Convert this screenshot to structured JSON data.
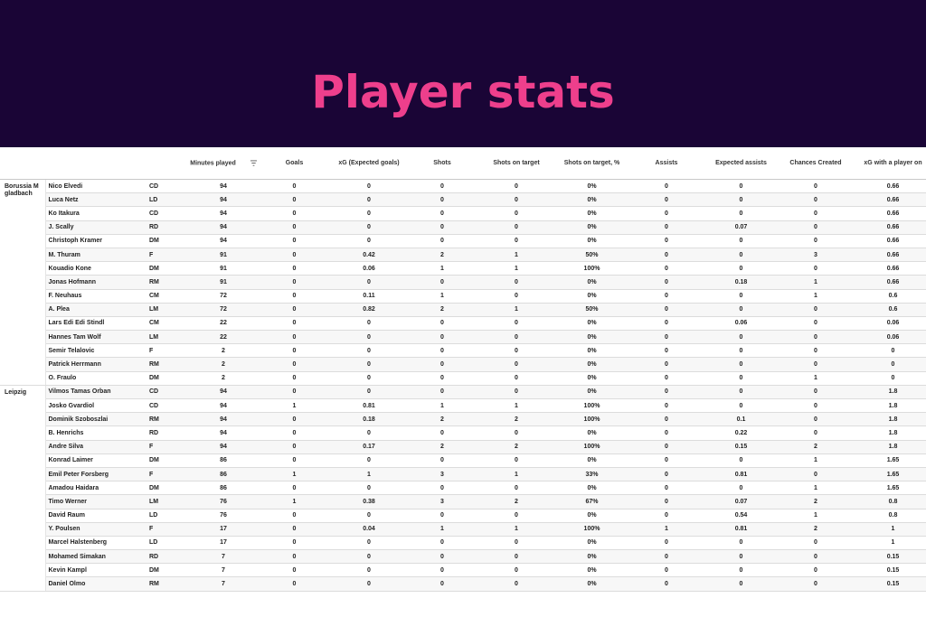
{
  "banner": {
    "title": "Player stats"
  },
  "columns": {
    "minutes": "Minutes played",
    "goals": "Goals",
    "xg": "xG (Expected goals)",
    "shots": "Shots",
    "sot": "Shots on target",
    "sot_pct": "Shots on target, %",
    "assists": "Assists",
    "xa": "Expected assists",
    "chances": "Chances Created",
    "xg_on": "xG with a player on"
  },
  "sort_icon": "sort-filter-icon",
  "teams": [
    {
      "name": "Borussia M gladbach",
      "players": [
        [
          "Nico Elvedi",
          "CD",
          "94",
          "0",
          "0",
          "0",
          "0",
          "0%",
          "0",
          "0",
          "0",
          "0.66"
        ],
        [
          "Luca Netz",
          "LD",
          "94",
          "0",
          "0",
          "0",
          "0",
          "0%",
          "0",
          "0",
          "0",
          "0.66"
        ],
        [
          "Ko Itakura",
          "CD",
          "94",
          "0",
          "0",
          "0",
          "0",
          "0%",
          "0",
          "0",
          "0",
          "0.66"
        ],
        [
          "J. Scally",
          "RD",
          "94",
          "0",
          "0",
          "0",
          "0",
          "0%",
          "0",
          "0.07",
          "0",
          "0.66"
        ],
        [
          "Christoph Kramer",
          "DM",
          "94",
          "0",
          "0",
          "0",
          "0",
          "0%",
          "0",
          "0",
          "0",
          "0.66"
        ],
        [
          "M. Thuram",
          "F",
          "91",
          "0",
          "0.42",
          "2",
          "1",
          "50%",
          "0",
          "0",
          "3",
          "0.66"
        ],
        [
          "Kouadio Kone",
          "DM",
          "91",
          "0",
          "0.06",
          "1",
          "1",
          "100%",
          "0",
          "0",
          "0",
          "0.66"
        ],
        [
          "Jonas Hofmann",
          "RM",
          "91",
          "0",
          "0",
          "0",
          "0",
          "0%",
          "0",
          "0.18",
          "1",
          "0.66"
        ],
        [
          "F. Neuhaus",
          "CM",
          "72",
          "0",
          "0.11",
          "1",
          "0",
          "0%",
          "0",
          "0",
          "1",
          "0.6"
        ],
        [
          "A. Plea",
          "LM",
          "72",
          "0",
          "0.82",
          "2",
          "1",
          "50%",
          "0",
          "0",
          "0",
          "0.6"
        ],
        [
          "Lars Edi Edi Stindl",
          "CM",
          "22",
          "0",
          "0",
          "0",
          "0",
          "0%",
          "0",
          "0.06",
          "0",
          "0.06"
        ],
        [
          "Hannes Tam Wolf",
          "LM",
          "22",
          "0",
          "0",
          "0",
          "0",
          "0%",
          "0",
          "0",
          "0",
          "0.06"
        ],
        [
          "Semir Telalovic",
          "F",
          "2",
          "0",
          "0",
          "0",
          "0",
          "0%",
          "0",
          "0",
          "0",
          "0"
        ],
        [
          "Patrick Herrmann",
          "RM",
          "2",
          "0",
          "0",
          "0",
          "0",
          "0%",
          "0",
          "0",
          "0",
          "0"
        ],
        [
          "O. Fraulo",
          "DM",
          "2",
          "0",
          "0",
          "0",
          "0",
          "0%",
          "0",
          "0",
          "1",
          "0"
        ]
      ]
    },
    {
      "name": "Leipzig",
      "players": [
        [
          "Vilmos Tamas Orban",
          "CD",
          "94",
          "0",
          "0",
          "0",
          "0",
          "0%",
          "0",
          "0",
          "0",
          "1.8"
        ],
        [
          "Josko Gvardiol",
          "CD",
          "94",
          "1",
          "0.81",
          "1",
          "1",
          "100%",
          "0",
          "0",
          "0",
          "1.8"
        ],
        [
          "Dominik Szoboszlai",
          "RM",
          "94",
          "0",
          "0.18",
          "2",
          "2",
          "100%",
          "0",
          "0.1",
          "0",
          "1.8"
        ],
        [
          "B. Henrichs",
          "RD",
          "94",
          "0",
          "0",
          "0",
          "0",
          "0%",
          "0",
          "0.22",
          "0",
          "1.8"
        ],
        [
          "Andre Silva",
          "F",
          "94",
          "0",
          "0.17",
          "2",
          "2",
          "100%",
          "0",
          "0.15",
          "2",
          "1.8"
        ],
        [
          "Konrad Laimer",
          "DM",
          "86",
          "0",
          "0",
          "0",
          "0",
          "0%",
          "0",
          "0",
          "1",
          "1.65"
        ],
        [
          "Emil Peter Forsberg",
          "F",
          "86",
          "1",
          "1",
          "3",
          "1",
          "33%",
          "0",
          "0.81",
          "0",
          "1.65"
        ],
        [
          "Amadou Haidara",
          "DM",
          "86",
          "0",
          "0",
          "0",
          "0",
          "0%",
          "0",
          "0",
          "1",
          "1.65"
        ],
        [
          "Timo Werner",
          "LM",
          "76",
          "1",
          "0.38",
          "3",
          "2",
          "67%",
          "0",
          "0.07",
          "2",
          "0.8"
        ],
        [
          "David Raum",
          "LD",
          "76",
          "0",
          "0",
          "0",
          "0",
          "0%",
          "0",
          "0.54",
          "1",
          "0.8"
        ],
        [
          "Y. Poulsen",
          "F",
          "17",
          "0",
          "0.04",
          "1",
          "1",
          "100%",
          "1",
          "0.81",
          "2",
          "1"
        ],
        [
          "Marcel Halstenberg",
          "LD",
          "17",
          "0",
          "0",
          "0",
          "0",
          "0%",
          "0",
          "0",
          "0",
          "1"
        ],
        [
          "Mohamed Simakan",
          "RD",
          "7",
          "0",
          "0",
          "0",
          "0",
          "0%",
          "0",
          "0",
          "0",
          "0.15"
        ],
        [
          "Kevin Kampl",
          "DM",
          "7",
          "0",
          "0",
          "0",
          "0",
          "0%",
          "0",
          "0",
          "0",
          "0.15"
        ],
        [
          "Daniel Olmo",
          "RM",
          "7",
          "0",
          "0",
          "0",
          "0",
          "0%",
          "0",
          "0",
          "0",
          "0.15"
        ]
      ]
    }
  ]
}
